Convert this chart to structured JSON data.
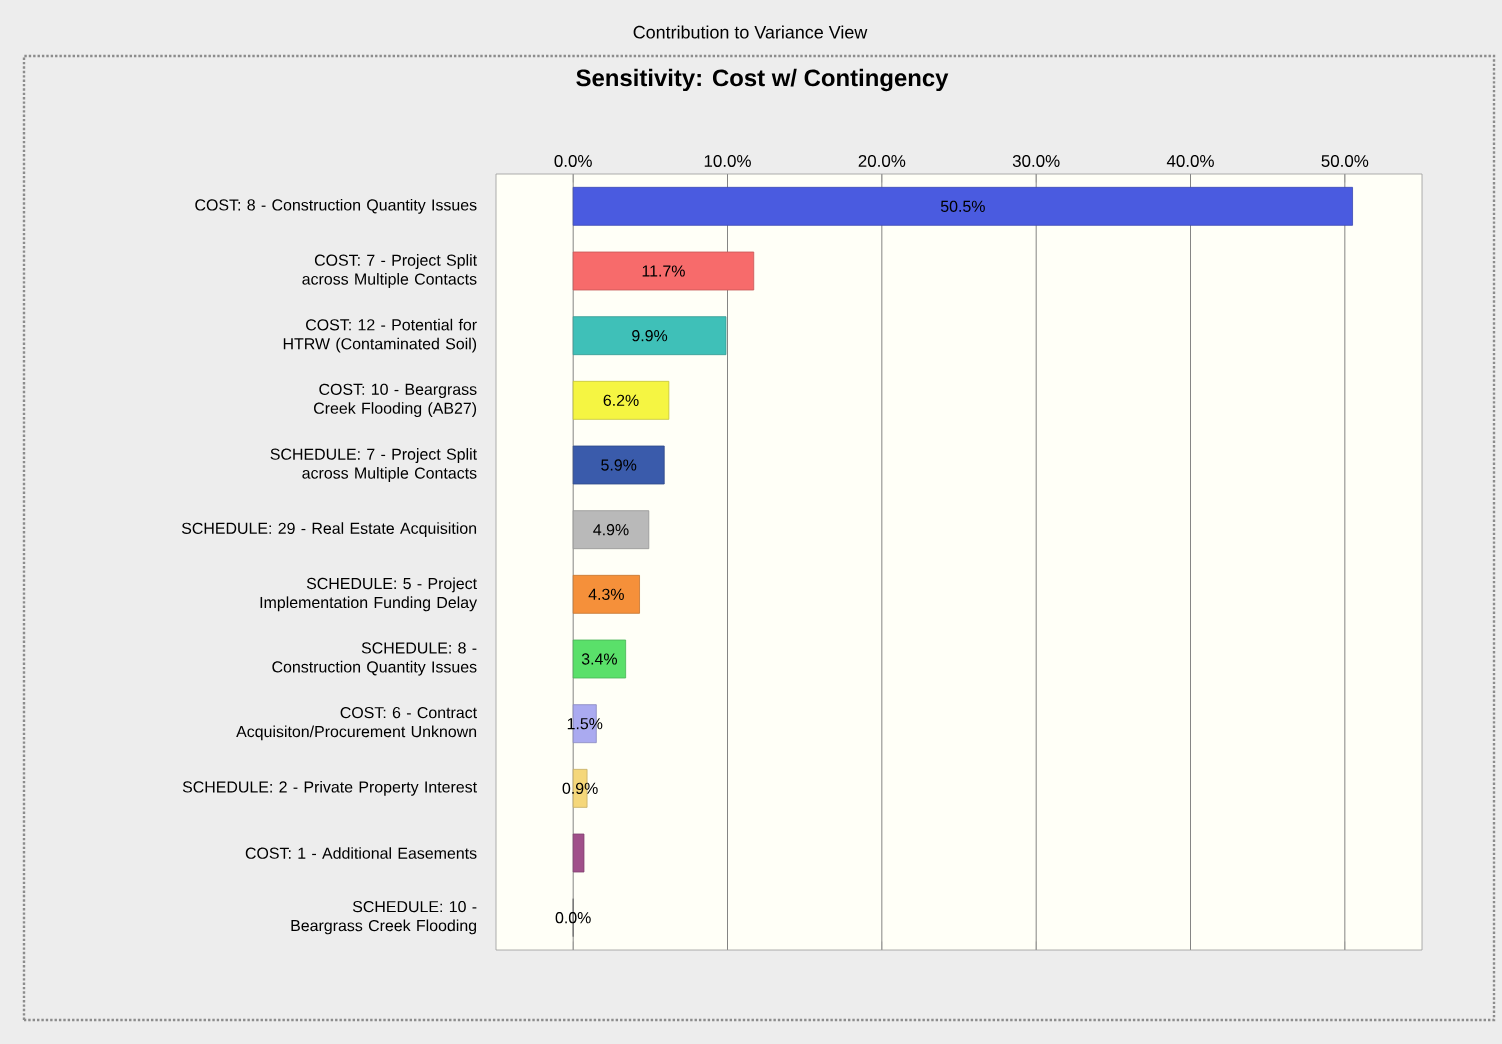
{
  "chart_data": {
    "type": "bar",
    "orientation": "horizontal",
    "title": "Sensitivity: Cost w/ Contingency",
    "annotations": [
      "Contribution to Variance View"
    ],
    "categories": [
      "COST: 8 - Construction Quantity Issues",
      "COST: 7 - Project Split across Multiple Contacts",
      "COST: 12 - Potential for HTRW (Contaminated Soil)",
      "COST: 10 - Beargrass Creek Flooding (AB27)",
      "SCHEDULE: 7 - Project Split across Multiple Contacts",
      "SCHEDULE: 29 - Real Estate Acquisition",
      "SCHEDULE: 5 - Project Implementation Funding Delay",
      "SCHEDULE: 8 - Construction Quantity Issues",
      "COST: 6 - Contract Acquisiton/Procurement Unknown",
      "SCHEDULE: 2 - Private Property Interest",
      "COST: 1 - Additional Easements",
      "SCHEDULE: 10 - Beargrass Creek Flooding"
    ],
    "values": [
      50.5,
      11.7,
      9.9,
      6.2,
      5.9,
      4.9,
      4.3,
      3.4,
      1.5,
      0.9,
      0.7,
      0.0
    ],
    "value_labels": [
      "50.5%",
      "11.7%",
      "9.9%",
      "6.2%",
      "5.9%",
      "4.9%",
      "4.3%",
      "3.4%",
      "1.5%",
      "0.9%",
      null,
      "0.0%"
    ],
    "colors": [
      "#4a5be0",
      "#f76b6b",
      "#3fc0b8",
      "#f5f542",
      "#3a5bab",
      "#b9b9b9",
      "#f5903a",
      "#5ae06a",
      "#aaaaf0",
      "#f5d77a",
      "#a0508a",
      "#888888"
    ],
    "xlim": [
      -5,
      55
    ],
    "xticks": [
      {
        "value": 0,
        "label": "0.0%"
      },
      {
        "value": 10,
        "label": "10.0%"
      },
      {
        "value": 20,
        "label": "20.0%"
      },
      {
        "value": 30,
        "label": "30.0%"
      },
      {
        "value": 40,
        "label": "40.0%"
      },
      {
        "value": 50,
        "label": "50.0%"
      }
    ],
    "grid": "x"
  }
}
